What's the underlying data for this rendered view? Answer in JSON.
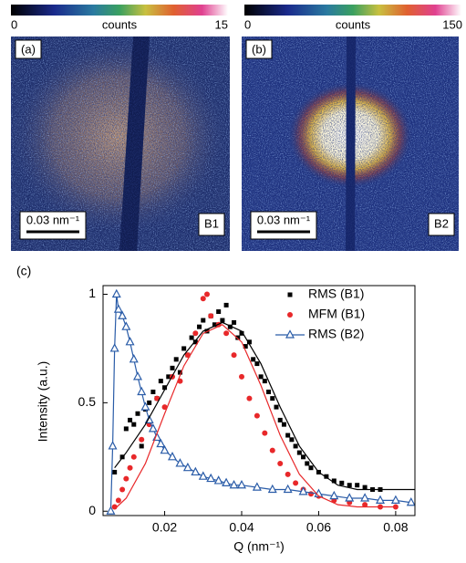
{
  "panels": [
    {
      "label": "(a)",
      "colorbar": {
        "min": 0,
        "title": "counts",
        "max": 15
      },
      "scale_bar": "0.03 nm⁻¹",
      "sample": "B1"
    },
    {
      "label": "(b)",
      "colorbar": {
        "min": 0,
        "title": "counts",
        "max": 150
      },
      "scale_bar": "0.03 nm⁻¹",
      "sample": "B2"
    }
  ],
  "chart_data": {
    "type": "scatter",
    "panel_label": "(c)",
    "x_label": "Q (nm⁻¹)",
    "y_label": "Intensity (a.u.)",
    "xlim": [
      0.004,
      0.085
    ],
    "ylim": [
      -0.02,
      1.04
    ],
    "xticks": [
      0.02,
      0.04,
      0.06,
      0.08
    ],
    "yticks": [
      0,
      0.5,
      1
    ],
    "legend": "upper right",
    "series": [
      {
        "name": "RMS (B1)",
        "color": "#000000",
        "marker": "square",
        "x": [
          0.007,
          0.009,
          0.01,
          0.011,
          0.012,
          0.013,
          0.014,
          0.015,
          0.016,
          0.017,
          0.018,
          0.019,
          0.02,
          0.021,
          0.022,
          0.023,
          0.024,
          0.025,
          0.026,
          0.027,
          0.028,
          0.029,
          0.03,
          0.031,
          0.032,
          0.033,
          0.034,
          0.035,
          0.036,
          0.037,
          0.038,
          0.039,
          0.04,
          0.041,
          0.042,
          0.043,
          0.044,
          0.045,
          0.046,
          0.047,
          0.048,
          0.049,
          0.05,
          0.051,
          0.052,
          0.053,
          0.054,
          0.055,
          0.056,
          0.057,
          0.058,
          0.06,
          0.062,
          0.064,
          0.066,
          0.068,
          0.07,
          0.072,
          0.074,
          0.076
        ],
        "values": [
          0.18,
          0.25,
          0.38,
          0.42,
          0.4,
          0.45,
          0.3,
          0.47,
          0.5,
          0.55,
          0.52,
          0.6,
          0.57,
          0.62,
          0.66,
          0.7,
          0.64,
          0.75,
          0.72,
          0.8,
          0.78,
          0.85,
          0.88,
          0.83,
          0.9,
          0.86,
          0.92,
          0.88,
          0.95,
          0.85,
          0.87,
          0.8,
          0.82,
          0.76,
          0.78,
          0.7,
          0.68,
          0.62,
          0.6,
          0.55,
          0.52,
          0.48,
          0.42,
          0.4,
          0.35,
          0.33,
          0.3,
          0.27,
          0.25,
          0.22,
          0.2,
          0.18,
          0.16,
          0.14,
          0.13,
          0.12,
          0.12,
          0.11,
          0.1,
          0.1
        ]
      },
      {
        "name": "MFM (B1)",
        "color": "#e8282a",
        "marker": "circle",
        "x": [
          0.007,
          0.008,
          0.009,
          0.01,
          0.011,
          0.012,
          0.014,
          0.016,
          0.018,
          0.02,
          0.022,
          0.024,
          0.026,
          0.028,
          0.03,
          0.031,
          0.032,
          0.034,
          0.036,
          0.038,
          0.04,
          0.042,
          0.044,
          0.046,
          0.048,
          0.05,
          0.052,
          0.054,
          0.056,
          0.058,
          0.06,
          0.064,
          0.068,
          0.072,
          0.076,
          0.08
        ],
        "values": [
          0.02,
          0.05,
          0.1,
          0.15,
          0.2,
          0.25,
          0.33,
          0.4,
          0.52,
          0.48,
          0.62,
          0.6,
          0.72,
          0.82,
          0.98,
          1.0,
          0.9,
          0.86,
          0.82,
          0.72,
          0.62,
          0.52,
          0.44,
          0.36,
          0.28,
          0.22,
          0.17,
          0.13,
          0.1,
          0.08,
          0.07,
          0.05,
          0.04,
          0.03,
          0.02,
          0.02
        ]
      },
      {
        "name": "RMS (B2)",
        "color": "#2a5ca8",
        "marker": "triangle",
        "line": true,
        "x": [
          0.006,
          0.0065,
          0.007,
          0.0075,
          0.008,
          0.009,
          0.01,
          0.011,
          0.012,
          0.013,
          0.014,
          0.015,
          0.016,
          0.017,
          0.018,
          0.019,
          0.02,
          0.022,
          0.024,
          0.026,
          0.028,
          0.03,
          0.032,
          0.034,
          0.036,
          0.038,
          0.04,
          0.044,
          0.048,
          0.052,
          0.056,
          0.06,
          0.064,
          0.068,
          0.072,
          0.076,
          0.08,
          0.084
        ],
        "values": [
          0.0,
          0.3,
          0.75,
          1.0,
          0.93,
          0.9,
          0.85,
          0.78,
          0.7,
          0.62,
          0.55,
          0.48,
          0.42,
          0.38,
          0.34,
          0.31,
          0.28,
          0.25,
          0.22,
          0.2,
          0.18,
          0.16,
          0.15,
          0.14,
          0.13,
          0.12,
          0.12,
          0.11,
          0.1,
          0.1,
          0.09,
          0.08,
          0.07,
          0.06,
          0.06,
          0.05,
          0.05,
          0.04
        ]
      },
      {
        "color": "#000000",
        "line": true,
        "x": [
          0.007,
          0.01,
          0.015,
          0.02,
          0.025,
          0.03,
          0.035,
          0.04,
          0.045,
          0.05,
          0.055,
          0.06,
          0.065,
          0.07,
          0.08,
          0.085
        ],
        "values": [
          0.2,
          0.27,
          0.4,
          0.56,
          0.72,
          0.83,
          0.87,
          0.83,
          0.68,
          0.48,
          0.3,
          0.18,
          0.12,
          0.1,
          0.1,
          0.1
        ]
      },
      {
        "color": "#e8282a",
        "line": true,
        "x": [
          0.007,
          0.01,
          0.015,
          0.02,
          0.025,
          0.03,
          0.035,
          0.04,
          0.045,
          0.05,
          0.055,
          0.06,
          0.065,
          0.07,
          0.08
        ],
        "values": [
          0.01,
          0.06,
          0.22,
          0.45,
          0.67,
          0.82,
          0.86,
          0.78,
          0.58,
          0.35,
          0.17,
          0.07,
          0.03,
          0.02,
          0.02
        ]
      }
    ]
  }
}
